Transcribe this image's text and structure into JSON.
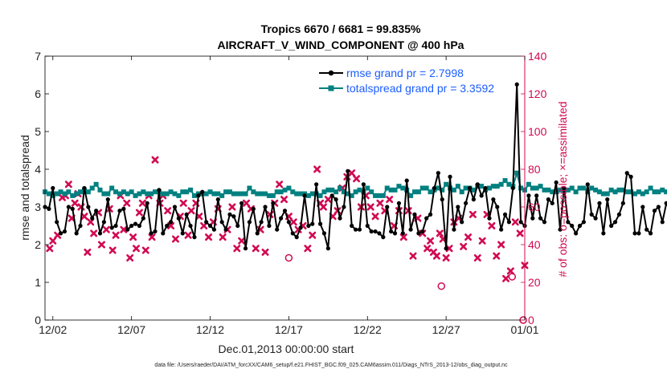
{
  "chart_data": {
    "type": "line",
    "title_line1": "Tropics 6670 / 6681 = 99.835%",
    "title_line2": "AIRCRAFT_V_WIND_COMPONENT @ 400 hPa",
    "xlabel": "Dec.01,2013 00:00:00 start",
    "ylabel_left": "rmse and totalspread",
    "ylabel_right": "# of obs: o=possible; ×=assimilated",
    "xlim": [
      0.5,
      31.0
    ],
    "ylim_left": [
      0,
      7
    ],
    "ylim_right": [
      0,
      140
    ],
    "x_ticks": [
      {
        "x": 1.0,
        "label": "12/02"
      },
      {
        "x": 6.0,
        "label": "12/07"
      },
      {
        "x": 11.0,
        "label": "12/12"
      },
      {
        "x": 16.0,
        "label": "12/17"
      },
      {
        "x": 21.0,
        "label": "12/22"
      },
      {
        "x": 26.0,
        "label": "12/27"
      },
      {
        "x": 31.0,
        "label": "01/01"
      }
    ],
    "y_ticks_left": [
      "0",
      "1",
      "2",
      "3",
      "4",
      "5",
      "6",
      "7"
    ],
    "y_ticks_right": [
      "0",
      "20",
      "40",
      "60",
      "80",
      "100",
      "120",
      "140"
    ],
    "footer": "data file: /Users/raeder/DAI/ATM_forcXX/CAM6_setup/f.e21.FHIST_BGC.f09_025.CAM6assim.011/Diags_NTrS_2013-12/obs_diag_output.nc",
    "series": [
      {
        "name": "rmse",
        "legend": "rmse grand pr = 2.7998",
        "color": "#000000",
        "start": 0.5,
        "step": 0.25,
        "values": [
          3.0,
          2.95,
          3.5,
          2.6,
          2.3,
          2.35,
          3.0,
          2.95,
          2.3,
          2.5,
          3.5,
          3.0,
          2.7,
          2.9,
          2.3,
          2.6,
          3.2,
          2.45,
          2.5,
          2.9,
          2.95,
          2.4,
          2.5,
          2.55,
          2.5,
          2.7,
          3.1,
          2.3,
          2.35,
          3.45,
          2.3,
          2.5,
          2.6,
          3.0,
          2.7,
          2.3,
          2.8,
          2.5,
          2.2,
          3.3,
          3.4,
          2.6,
          2.5,
          2.4,
          3.2,
          2.6,
          2.4,
          2.8,
          2.75,
          2.5,
          3.1,
          1.9,
          2.6,
          2.95,
          2.3,
          2.6,
          3.0,
          2.5,
          3.1,
          2.4,
          2.7,
          2.9,
          2.6,
          2.3,
          2.2,
          2.45,
          3.3,
          2.5,
          2.55,
          3.6,
          2.55,
          2.3,
          1.9,
          3.3,
          3.2,
          2.7,
          3.0,
          3.95,
          2.5,
          2.4,
          2.4,
          3.6,
          2.5,
          2.35,
          2.35,
          2.3,
          2.2,
          3.0,
          2.35,
          2.3,
          3.1,
          2.3,
          3.7,
          2.4,
          2.8,
          2.3,
          2.35,
          2.7,
          2.8,
          3.5,
          3.9,
          3.2,
          1.9,
          3.8,
          2.4,
          3.0,
          2.6,
          3.1,
          3.5,
          3.2,
          3.6,
          3.3,
          3.5,
          2.7,
          3.2,
          3.0,
          2.4,
          2.8,
          2.6,
          3.5,
          6.25,
          2.6,
          2.5,
          3.3,
          2.7,
          3.3,
          2.7,
          2.6,
          3.2,
          3.1,
          3.65,
          2.4,
          3.5,
          2.6,
          2.5,
          2.3,
          2.5,
          2.6,
          3.6,
          2.8,
          2.7,
          3.1,
          2.3,
          3.2,
          2.5,
          2.6,
          2.8,
          3.1,
          3.9,
          3.8,
          2.3,
          2.3,
          3.0,
          2.4,
          2.3,
          2.9,
          3.0,
          2.6,
          3.1,
          2.9,
          2.5,
          2.7,
          2.5,
          2.6,
          2.9,
          2.4,
          2.95
        ]
      },
      {
        "name": "totalspread",
        "legend": "totalspread grand pr = 3.3592",
        "color": "#008080",
        "start": 0.5,
        "step": 0.25,
        "values": [
          3.4,
          3.35,
          3.3,
          3.35,
          3.4,
          3.35,
          3.4,
          3.3,
          3.35,
          3.4,
          3.45,
          3.4,
          3.5,
          3.6,
          3.45,
          3.35,
          3.35,
          3.5,
          3.4,
          3.35,
          3.4,
          3.35,
          3.4,
          3.3,
          3.35,
          3.4,
          3.35,
          3.35,
          3.4,
          3.4,
          3.35,
          3.35,
          3.4,
          3.35,
          3.3,
          3.4,
          3.4,
          3.45,
          3.3,
          3.35,
          3.35,
          3.35,
          3.4,
          3.35,
          3.35,
          3.3,
          3.4,
          3.4,
          3.35,
          3.35,
          3.35,
          3.35,
          3.5,
          3.4,
          3.35,
          3.35,
          3.35,
          3.3,
          3.3,
          3.4,
          3.4,
          3.45,
          3.5,
          3.4,
          3.35,
          3.35,
          3.35,
          3.3,
          3.35,
          3.35,
          3.3,
          3.4,
          3.45,
          3.45,
          3.4,
          3.5,
          3.4,
          3.35,
          3.3,
          3.4,
          3.45,
          3.4,
          3.5,
          3.4,
          3.3,
          3.3,
          3.3,
          3.5,
          3.45,
          3.45,
          3.55,
          3.5,
          3.45,
          3.3,
          3.4,
          3.4,
          3.5,
          3.5,
          3.4,
          3.45,
          3.5,
          3.45,
          3.6,
          3.5,
          3.45,
          3.55,
          3.4,
          3.5,
          3.5,
          3.45,
          3.55,
          3.55,
          3.45,
          3.5,
          3.55,
          3.55,
          3.6,
          3.7,
          3.6,
          3.55,
          3.9,
          3.5,
          3.45,
          3.6,
          3.5,
          3.5,
          3.55,
          3.45,
          3.45,
          3.4,
          3.4,
          3.45,
          3.45,
          3.45,
          3.5,
          3.4,
          3.5,
          3.5,
          3.4,
          3.5,
          3.45,
          3.4,
          3.35,
          3.35,
          3.45,
          3.4,
          3.45,
          3.45,
          3.4,
          3.4,
          3.35,
          3.4,
          3.35,
          3.4,
          3.5,
          3.4,
          3.4,
          3.45,
          3.4,
          3.4,
          3.4,
          3.45,
          3.35,
          3.4,
          3.35,
          3.45,
          3.4,
          3.4,
          3.4
        ]
      },
      {
        "name": "obs_assimilated",
        "color": "#d10a52",
        "marker": "x",
        "points": [
          [
            0.8,
            38
          ],
          [
            1.0,
            42
          ],
          [
            1.3,
            45
          ],
          [
            1.6,
            65
          ],
          [
            1.8,
            66
          ],
          [
            2.0,
            72
          ],
          [
            2.2,
            54
          ],
          [
            2.4,
            62
          ],
          [
            2.6,
            67
          ],
          [
            2.8,
            60
          ],
          [
            3.0,
            55
          ],
          [
            3.2,
            36
          ],
          [
            3.4,
            52
          ],
          [
            3.6,
            46
          ],
          [
            3.9,
            57
          ],
          [
            4.1,
            40
          ],
          [
            4.4,
            48
          ],
          [
            4.6,
            59
          ],
          [
            4.8,
            37
          ],
          [
            5.0,
            45
          ],
          [
            5.3,
            66
          ],
          [
            5.5,
            48
          ],
          [
            5.7,
            62
          ],
          [
            5.9,
            33
          ],
          [
            6.1,
            44
          ],
          [
            6.3,
            38
          ],
          [
            6.5,
            57
          ],
          [
            6.7,
            62
          ],
          [
            6.9,
            37
          ],
          [
            7.1,
            66
          ],
          [
            7.3,
            44
          ],
          [
            7.5,
            85
          ],
          [
            7.8,
            62
          ],
          [
            8.0,
            66
          ],
          [
            8.3,
            58
          ],
          [
            8.5,
            50
          ],
          [
            8.8,
            43
          ],
          [
            9.1,
            55
          ],
          [
            9.3,
            62
          ],
          [
            9.6,
            45
          ],
          [
            9.8,
            58
          ],
          [
            10.1,
            62
          ],
          [
            10.3,
            55
          ],
          [
            10.6,
            50
          ],
          [
            10.9,
            44
          ],
          [
            11.2,
            52
          ],
          [
            11.5,
            59
          ],
          [
            11.8,
            44
          ],
          [
            12.1,
            48
          ],
          [
            12.4,
            60
          ],
          [
            12.7,
            38
          ],
          [
            13.0,
            42
          ],
          [
            13.3,
            62
          ],
          [
            13.6,
            59
          ],
          [
            13.9,
            38
          ],
          [
            14.2,
            48
          ],
          [
            14.5,
            36
          ],
          [
            14.8,
            56
          ],
          [
            15.1,
            62
          ],
          [
            15.4,
            72
          ],
          [
            15.7,
            64
          ],
          [
            16.0,
            55
          ],
          [
            16.3,
            52
          ],
          [
            16.6,
            48
          ],
          [
            16.9,
            50
          ],
          [
            17.2,
            38
          ],
          [
            17.5,
            45
          ],
          [
            17.8,
            80
          ],
          [
            18.0,
            62
          ],
          [
            18.2,
            60
          ],
          [
            18.5,
            64
          ],
          [
            18.8,
            55
          ],
          [
            19.1,
            58
          ],
          [
            19.4,
            70
          ],
          [
            19.7,
            76
          ],
          [
            20.0,
            78
          ],
          [
            20.3,
            75
          ],
          [
            20.6,
            60
          ],
          [
            20.9,
            66
          ],
          [
            21.2,
            60
          ],
          [
            21.5,
            55
          ],
          [
            21.8,
            62
          ],
          [
            22.1,
            58
          ],
          [
            22.4,
            64
          ],
          [
            22.7,
            50
          ],
          [
            23.0,
            58
          ],
          [
            23.3,
            44
          ],
          [
            23.6,
            58
          ],
          [
            23.9,
            34
          ],
          [
            24.2,
            54
          ],
          [
            24.5,
            46
          ],
          [
            24.8,
            38
          ],
          [
            25.0,
            42
          ],
          [
            25.2,
            36
          ],
          [
            25.4,
            34
          ],
          [
            25.6,
            46
          ],
          [
            25.8,
            43
          ],
          [
            26.0,
            33
          ],
          [
            26.2,
            38
          ],
          [
            26.5,
            52
          ],
          [
            26.8,
            54
          ],
          [
            27.1,
            39
          ],
          [
            27.4,
            44
          ],
          [
            27.7,
            56
          ],
          [
            28.0,
            33
          ],
          [
            28.3,
            42
          ],
          [
            28.6,
            56
          ],
          [
            28.9,
            50
          ],
          [
            29.2,
            34
          ],
          [
            29.5,
            40
          ],
          [
            29.8,
            22
          ],
          [
            30.1,
            26
          ],
          [
            30.4,
            52
          ],
          [
            30.7,
            46
          ],
          [
            31.0,
            29
          ]
        ]
      },
      {
        "name": "obs_possible",
        "color": "#d10a52",
        "marker": "o",
        "points": [
          [
            25.7,
            18
          ],
          [
            30.2,
            23
          ],
          [
            16.0,
            33
          ],
          [
            30.9,
            0
          ]
        ]
      }
    ]
  }
}
